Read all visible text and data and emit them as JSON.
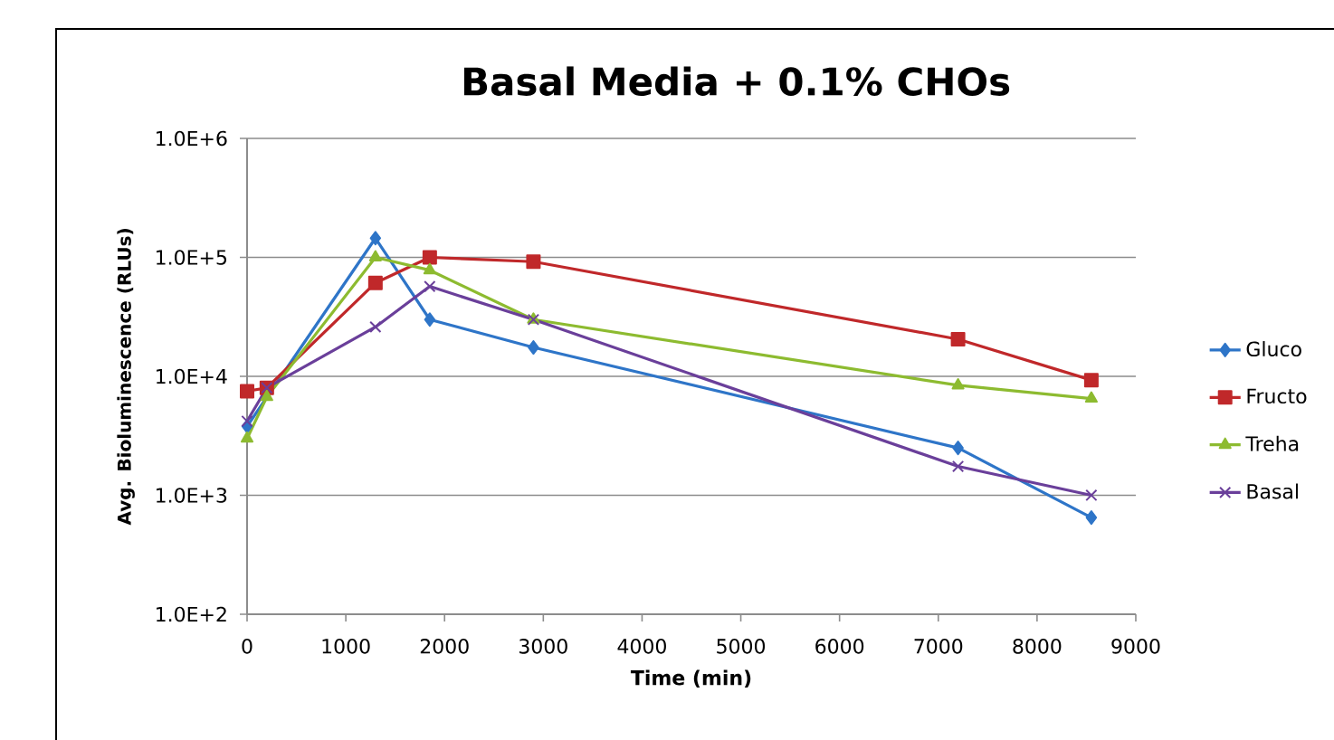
{
  "chart_data": {
    "type": "line",
    "title": "Basal Media + 0.1% CHOs",
    "xlabel": "Time (min)",
    "ylabel": "Avg. Bioluminescence  (RLUs)",
    "x": [
      0,
      200,
      1300,
      1850,
      2900,
      7200,
      8550
    ],
    "series": [
      {
        "name": "Gluco",
        "color": "#2e75c8",
        "marker": "diamond",
        "values": [
          3800,
          null,
          145000,
          30000,
          17500,
          2500,
          650
        ]
      },
      {
        "name": "Fructo",
        "color": "#c0282a",
        "marker": "square",
        "values": [
          7500,
          8000,
          61000,
          100000,
          92000,
          20500,
          9300
        ]
      },
      {
        "name": "Treha",
        "color": "#8dbb30",
        "marker": "triangle",
        "values": [
          3000,
          6700,
          100000,
          78000,
          30000,
          8400,
          6500
        ]
      },
      {
        "name": "Basal",
        "color": "#6a3f9a",
        "marker": "cross",
        "values": [
          4200,
          8000,
          26000,
          57000,
          30000,
          1750,
          1000
        ]
      }
    ],
    "log": "y",
    "xlim": [
      0,
      9000
    ],
    "ylim": [
      100,
      1000000
    ],
    "xticks": [
      0,
      1000,
      2000,
      3000,
      4000,
      5000,
      6000,
      7000,
      8000,
      9000
    ],
    "yticks": [
      {
        "value": 100,
        "label": "1.0E+2"
      },
      {
        "value": 1000,
        "label": "1.0E+3"
      },
      {
        "value": 10000,
        "label": "1.0E+4"
      },
      {
        "value": 100000,
        "label": "1.0E+5"
      },
      {
        "value": 1000000,
        "label": "1.0E+6"
      }
    ],
    "grid": "y",
    "legend": "right",
    "line_style": "solid"
  }
}
